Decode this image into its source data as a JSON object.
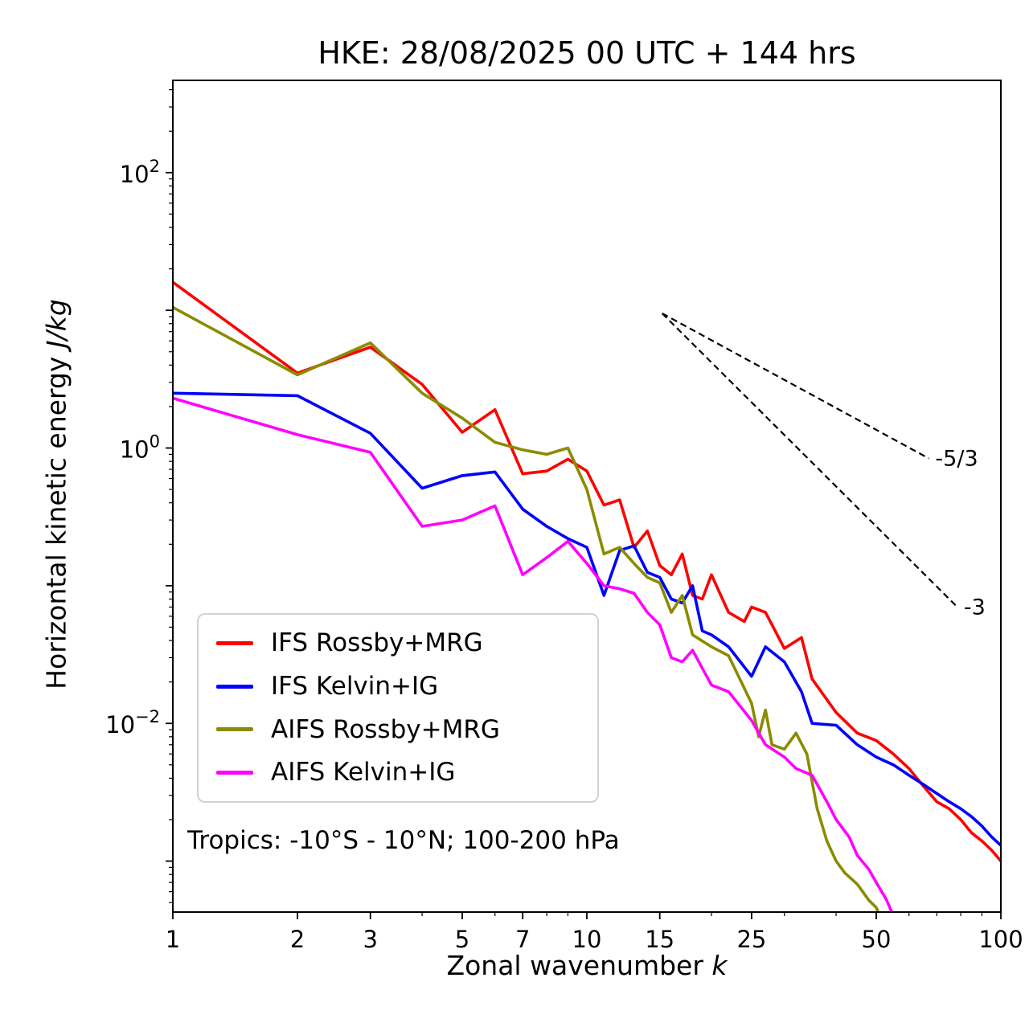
{
  "title": "HKE: 28/08/2025 00 UTC + 144 hrs",
  "axes": {
    "x_label_main": "Zonal wavenumber ",
    "x_label_var": "k",
    "y_label_main": "Horizontal kinetic energy ",
    "y_label_var": "J/kg"
  },
  "annotation": "Tropics: -10°S - 10°N; 100-200 hPa",
  "legend": {
    "items": [
      {
        "label": "IFS Rossby+MRG",
        "color": "#ff0000"
      },
      {
        "label": "IFS Kelvin+IG",
        "color": "#0000ff"
      },
      {
        "label": "AIFS Rossby+MRG",
        "color": "#8b8b00"
      },
      {
        "label": "AIFS Kelvin+IG",
        "color": "#ff00ff"
      }
    ]
  },
  "chart_data": {
    "type": "line",
    "title": "HKE: 28/08/2025 00 UTC + 144 hrs",
    "xlabel": "Zonal wavenumber k",
    "ylabel": "Horizontal kinetic energy J/kg",
    "x_scale": "log",
    "y_scale": "log",
    "xlim": [
      1,
      100
    ],
    "ylim_log": [
      -3.37,
      2.67
    ],
    "x_ticks": [
      1,
      2,
      3,
      5,
      7,
      10,
      15,
      25,
      50,
      100
    ],
    "x_minor_ticks": [
      4,
      6,
      8,
      9,
      20,
      30,
      40,
      60,
      70,
      80,
      90
    ],
    "y_tick_exponents_labeled": [
      2,
      0,
      -2
    ],
    "y_tick_exponents_unlabeled": [
      1,
      -1,
      -3
    ],
    "grid": false,
    "legend_position": "lower-left",
    "series": [
      {
        "name": "IFS Rossby+MRG",
        "color": "#ff0000",
        "k": [
          1,
          2,
          3,
          4,
          5,
          6,
          7,
          8,
          9,
          10,
          11,
          12,
          13,
          14,
          15,
          16,
          17,
          18,
          19,
          20,
          22,
          24,
          25,
          27,
          30,
          33,
          35,
          40,
          45,
          50,
          55,
          60,
          65,
          70,
          75,
          80,
          85,
          90,
          95,
          100
        ],
        "v": [
          16,
          3.5,
          5.4,
          2.9,
          1.3,
          1.9,
          0.65,
          0.68,
          0.83,
          0.68,
          0.385,
          0.42,
          0.19,
          0.25,
          0.14,
          0.12,
          0.17,
          0.085,
          0.08,
          0.12,
          0.064,
          0.055,
          0.07,
          0.064,
          0.035,
          0.042,
          0.021,
          0.012,
          0.0085,
          0.0075,
          0.006,
          0.0047,
          0.0035,
          0.0027,
          0.0024,
          0.002,
          0.0016,
          0.0014,
          0.0012,
          0.001
        ]
      },
      {
        "name": "IFS Kelvin+IG",
        "color": "#0000ff",
        "k": [
          1,
          2,
          3,
          4,
          5,
          6,
          7,
          8,
          9,
          10,
          11,
          12,
          13,
          14,
          15,
          16,
          17,
          18,
          19,
          20,
          22,
          25,
          27,
          30,
          33,
          35,
          40,
          45,
          50,
          55,
          60,
          65,
          70,
          75,
          80,
          85,
          90,
          95,
          100
        ],
        "v": [
          2.5,
          2.4,
          1.28,
          0.51,
          0.63,
          0.67,
          0.36,
          0.27,
          0.22,
          0.19,
          0.085,
          0.18,
          0.195,
          0.125,
          0.115,
          0.08,
          0.075,
          0.1,
          0.047,
          0.044,
          0.036,
          0.022,
          0.036,
          0.028,
          0.017,
          0.01,
          0.0097,
          0.007,
          0.0057,
          0.005,
          0.0042,
          0.0036,
          0.0031,
          0.0027,
          0.0024,
          0.0021,
          0.0018,
          0.0015,
          0.0013
        ]
      },
      {
        "name": "AIFS Rossby+MRG",
        "color": "#8b8b00",
        "k": [
          1,
          2,
          3,
          4,
          5,
          6,
          7,
          8,
          9,
          10,
          11,
          12,
          13,
          14,
          15,
          16,
          17,
          18,
          20,
          22,
          25,
          26,
          27,
          28,
          30,
          32,
          34,
          36,
          38,
          40,
          42,
          45,
          48,
          50,
          52
        ],
        "v": [
          10.5,
          3.4,
          5.8,
          2.5,
          1.65,
          1.1,
          0.97,
          0.9,
          1.0,
          0.5,
          0.17,
          0.19,
          0.145,
          0.115,
          0.105,
          0.064,
          0.085,
          0.044,
          0.036,
          0.031,
          0.014,
          0.008,
          0.0125,
          0.007,
          0.0065,
          0.0085,
          0.006,
          0.0024,
          0.0014,
          0.001,
          0.00082,
          0.00068,
          0.00052,
          0.00046,
          0.00035
        ]
      },
      {
        "name": "AIFS Kelvin+IG",
        "color": "#ff00ff",
        "k": [
          1,
          2,
          3,
          4,
          5,
          6,
          7,
          8,
          9,
          10,
          11,
          12,
          13,
          14,
          15,
          16,
          17,
          18,
          20,
          22,
          25,
          27,
          30,
          32,
          35,
          38,
          40,
          43,
          45,
          48,
          50,
          53,
          55
        ],
        "v": [
          2.3,
          1.25,
          0.93,
          0.27,
          0.3,
          0.38,
          0.12,
          0.16,
          0.21,
          0.145,
          0.1,
          0.095,
          0.088,
          0.064,
          0.052,
          0.03,
          0.028,
          0.034,
          0.019,
          0.017,
          0.0105,
          0.007,
          0.0057,
          0.0047,
          0.0042,
          0.0027,
          0.002,
          0.0015,
          0.0011,
          0.00087,
          0.0007,
          0.00052,
          0.0004
        ]
      }
    ],
    "reference_lines": [
      {
        "label": "-5/3",
        "slope": "-5/3",
        "x": [
          15.2,
          67
        ],
        "y": [
          9.5,
          0.84
        ]
      },
      {
        "label": "-3",
        "slope": "-3",
        "x": [
          15.2,
          78.5
        ],
        "y": [
          9.5,
          0.07
        ]
      }
    ]
  }
}
